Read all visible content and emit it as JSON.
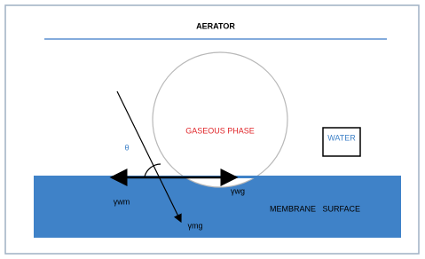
{
  "title": "AERATOR",
  "bubble_label": "GASEOUS PHASE",
  "water_label": "WATER",
  "angle_label": "θ",
  "surface_label": "MEMBRANE   SURFACE",
  "tension_labels": [
    "γwm",
    "γwg",
    "γmg"
  ]
}
